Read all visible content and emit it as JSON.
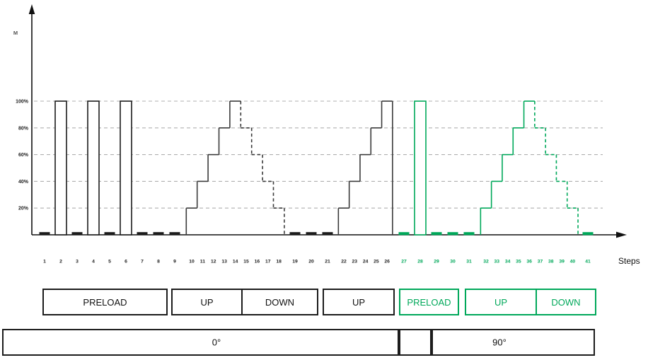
{
  "colors": {
    "black": "#1c1c1c",
    "stair_black": "#3a3a3a",
    "green": "#00a85a",
    "grid": "#b0b0b0"
  },
  "chart_data": {
    "type": "step-load-protocol (staircase bar/step chart)",
    "title": "",
    "ylabel": "M",
    "xlabel": "Steps",
    "ytick_labels": [
      "100%",
      "80%",
      "60%",
      "40%",
      "20%"
    ],
    "ytick_values": [
      100,
      80,
      60,
      40,
      20
    ],
    "ylim": [
      0,
      110
    ],
    "grid": "dashed horizontal lines at each y tick",
    "steps": [
      {
        "n": 1,
        "kind": "dash",
        "pct": 0,
        "line": "solid",
        "color": "black"
      },
      {
        "n": 2,
        "kind": "bar",
        "pct": 100,
        "line": "solid",
        "color": "black"
      },
      {
        "n": 3,
        "kind": "dash",
        "pct": 0,
        "line": "solid",
        "color": "black"
      },
      {
        "n": 4,
        "kind": "bar",
        "pct": 100,
        "line": "solid",
        "color": "black"
      },
      {
        "n": 5,
        "kind": "dash",
        "pct": 0,
        "line": "solid",
        "color": "black"
      },
      {
        "n": 6,
        "kind": "bar",
        "pct": 100,
        "line": "solid",
        "color": "black"
      },
      {
        "n": 7,
        "kind": "dash",
        "pct": 0,
        "line": "solid",
        "color": "black"
      },
      {
        "n": 8,
        "kind": "dash",
        "pct": 0,
        "line": "solid",
        "color": "black"
      },
      {
        "n": 9,
        "kind": "dash",
        "pct": 0,
        "line": "solid",
        "color": "black"
      },
      {
        "n": 10,
        "kind": "stair",
        "pct": 20,
        "line": "solid",
        "color": "black"
      },
      {
        "n": 11,
        "kind": "stair",
        "pct": 40,
        "line": "solid",
        "color": "black"
      },
      {
        "n": 12,
        "kind": "stair",
        "pct": 60,
        "line": "solid",
        "color": "black"
      },
      {
        "n": 13,
        "kind": "stair",
        "pct": 80,
        "line": "solid",
        "color": "black"
      },
      {
        "n": 14,
        "kind": "stair",
        "pct": 100,
        "line": "solid",
        "color": "black"
      },
      {
        "n": 15,
        "kind": "stair",
        "pct": 80,
        "line": "dashed",
        "color": "black"
      },
      {
        "n": 16,
        "kind": "stair",
        "pct": 60,
        "line": "dashed",
        "color": "black"
      },
      {
        "n": 17,
        "kind": "stair",
        "pct": 40,
        "line": "dashed",
        "color": "black"
      },
      {
        "n": 18,
        "kind": "stair",
        "pct": 20,
        "line": "dashed",
        "color": "black"
      },
      {
        "n": 19,
        "kind": "dash",
        "pct": 0,
        "line": "solid",
        "color": "black"
      },
      {
        "n": 20,
        "kind": "dash",
        "pct": 0,
        "line": "solid",
        "color": "black"
      },
      {
        "n": 21,
        "kind": "dash",
        "pct": 0,
        "line": "solid",
        "color": "black"
      },
      {
        "n": 22,
        "kind": "stair",
        "pct": 20,
        "line": "solid",
        "color": "black"
      },
      {
        "n": 23,
        "kind": "stair",
        "pct": 40,
        "line": "solid",
        "color": "black"
      },
      {
        "n": 24,
        "kind": "stair",
        "pct": 60,
        "line": "solid",
        "color": "black"
      },
      {
        "n": 25,
        "kind": "stair",
        "pct": 80,
        "line": "solid",
        "color": "black"
      },
      {
        "n": 26,
        "kind": "stair",
        "pct": 100,
        "line": "solid",
        "color": "black"
      },
      {
        "n": 27,
        "kind": "dash",
        "pct": 0,
        "line": "solid",
        "color": "green"
      },
      {
        "n": 28,
        "kind": "bar",
        "pct": 100,
        "line": "solid",
        "color": "green"
      },
      {
        "n": 29,
        "kind": "dash",
        "pct": 0,
        "line": "solid",
        "color": "green"
      },
      {
        "n": 30,
        "kind": "dash",
        "pct": 0,
        "line": "solid",
        "color": "green"
      },
      {
        "n": 31,
        "kind": "dash",
        "pct": 0,
        "line": "solid",
        "color": "green"
      },
      {
        "n": 32,
        "kind": "stair",
        "pct": 20,
        "line": "solid",
        "color": "green"
      },
      {
        "n": 33,
        "kind": "stair",
        "pct": 40,
        "line": "solid",
        "color": "green"
      },
      {
        "n": 34,
        "kind": "stair",
        "pct": 60,
        "line": "solid",
        "color": "green"
      },
      {
        "n": 35,
        "kind": "stair",
        "pct": 80,
        "line": "solid",
        "color": "green"
      },
      {
        "n": 36,
        "kind": "stair",
        "pct": 100,
        "line": "solid",
        "color": "green"
      },
      {
        "n": 37,
        "kind": "stair",
        "pct": 80,
        "line": "dashed",
        "color": "green"
      },
      {
        "n": 38,
        "kind": "stair",
        "pct": 60,
        "line": "dashed",
        "color": "green"
      },
      {
        "n": 39,
        "kind": "stair",
        "pct": 40,
        "line": "dashed",
        "color": "green"
      },
      {
        "n": 40,
        "kind": "stair",
        "pct": 20,
        "line": "dashed",
        "color": "green"
      },
      {
        "n": 41,
        "kind": "dash",
        "pct": 0,
        "line": "solid",
        "color": "green"
      }
    ],
    "phases": [
      {
        "label": "PRELOAD",
        "from": 1,
        "to": 9,
        "color": "black"
      },
      {
        "label": "UP",
        "from": 10,
        "to": 14,
        "color": "black"
      },
      {
        "label": "DOWN",
        "from": 15,
        "to": 18,
        "color": "black"
      },
      {
        "label": "UP",
        "from": 22,
        "to": 26,
        "color": "black"
      },
      {
        "label": "PRELOAD",
        "from": 27,
        "to": 31,
        "color": "green"
      },
      {
        "label": "UP",
        "from": 32,
        "to": 36,
        "color": "green"
      },
      {
        "label": "DOWN",
        "from": 37,
        "to": 40,
        "color": "green"
      }
    ],
    "angles": [
      {
        "label": "0°"
      },
      {
        "label": ""
      },
      {
        "label": "90°"
      }
    ]
  }
}
